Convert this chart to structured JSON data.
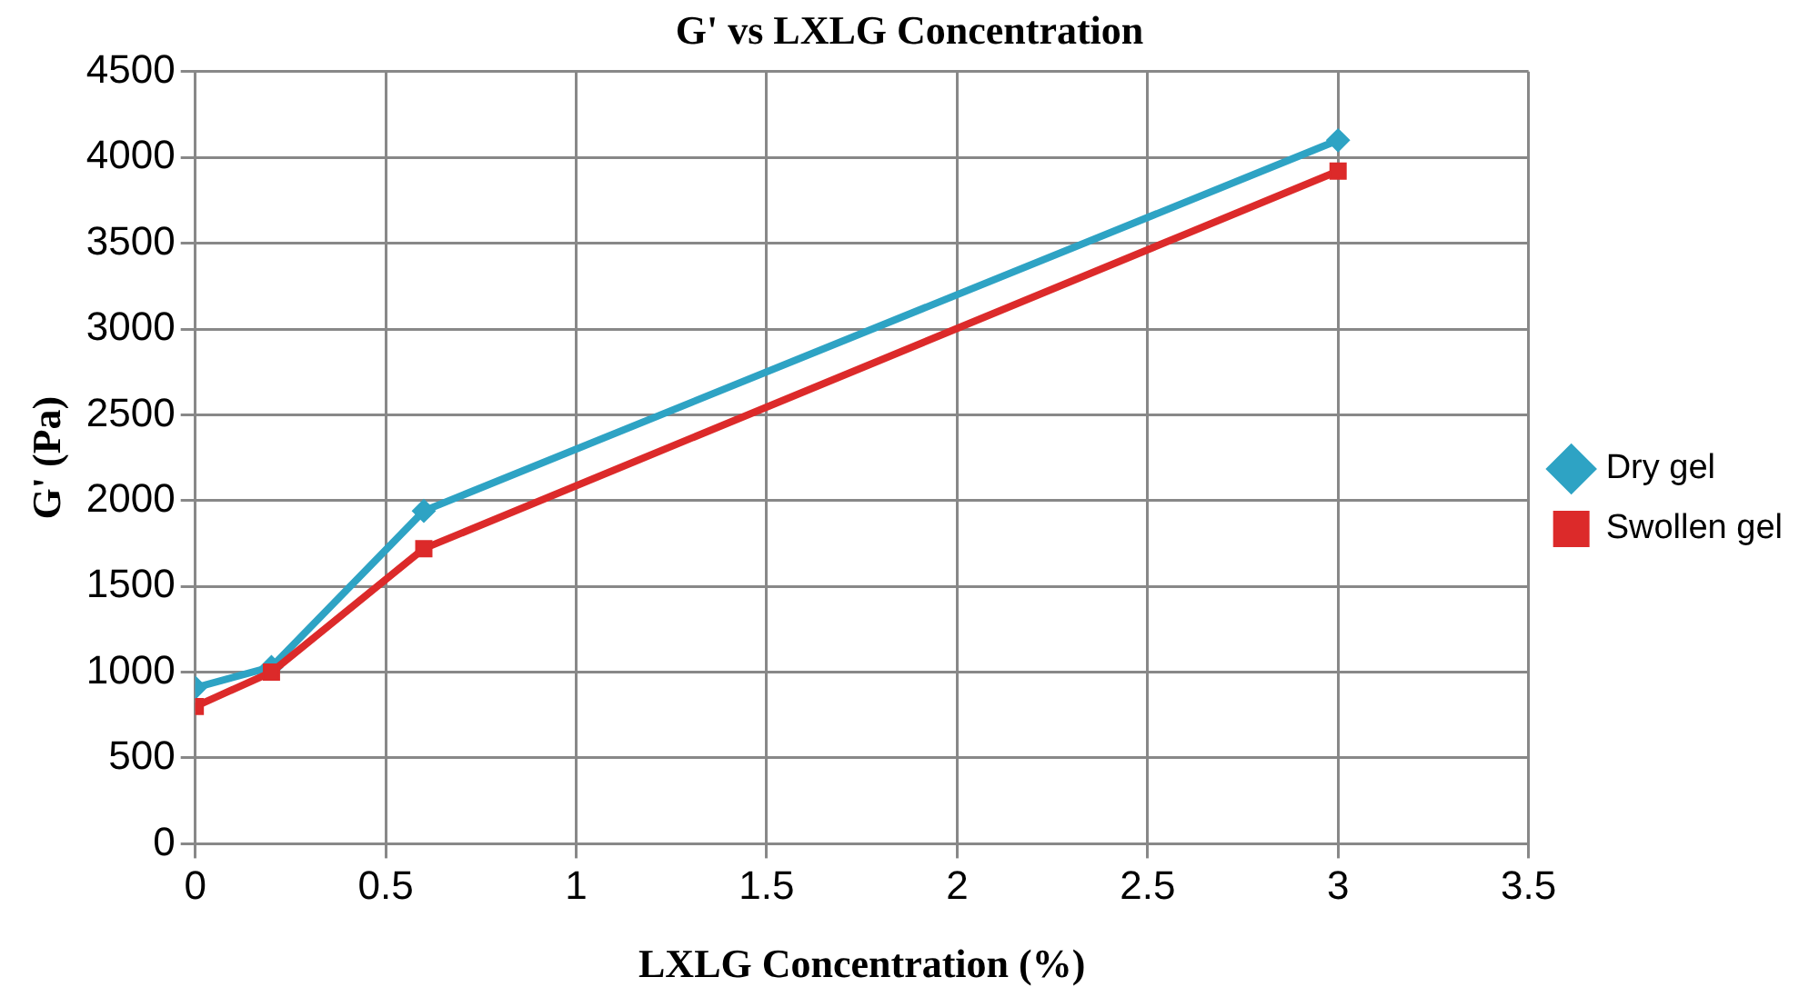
{
  "chart_data": {
    "type": "line",
    "title": "G' vs LXLG Concentration",
    "xlabel": "LXLG Concentration (%)",
    "ylabel": "G' (Pa)",
    "x": [
      0,
      0.2,
      0.6,
      3
    ],
    "series": [
      {
        "name": "Dry gel",
        "color": "#2ea3c4",
        "values": [
          910,
          1030,
          1940,
          4100
        ],
        "marker": "diamond"
      },
      {
        "name": "Swollen gel",
        "color": "#dc2a2a",
        "values": [
          800,
          1000,
          1720,
          3920
        ],
        "marker": "square"
      }
    ],
    "xlim": [
      0,
      3.5
    ],
    "xticks": [
      0,
      0.5,
      1,
      1.5,
      2,
      2.5,
      3,
      3.5
    ],
    "ylim": [
      0,
      4500
    ],
    "yticks": [
      0,
      500,
      1000,
      1500,
      2000,
      2500,
      3000,
      3500,
      4000,
      4500
    ],
    "grid": true,
    "legend": "right",
    "line_style": "solid"
  }
}
